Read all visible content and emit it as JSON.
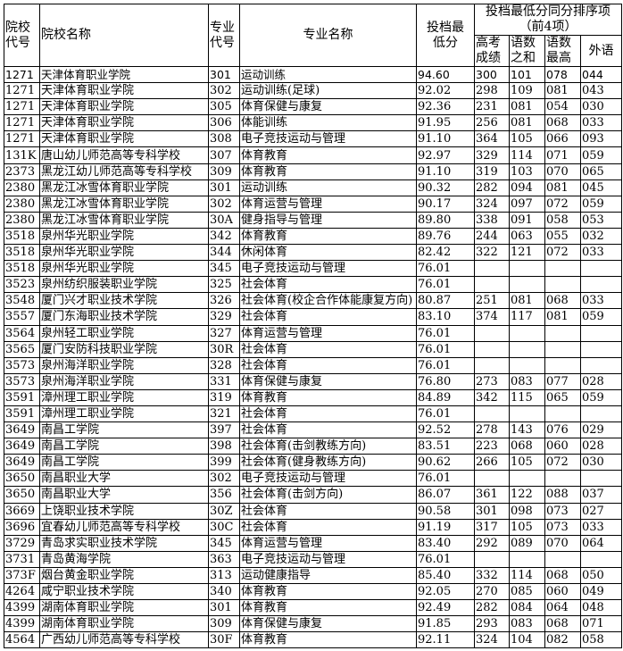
{
  "header": {
    "school_code": "院校代号",
    "school_name": "院校名称",
    "major_code": "专业代号",
    "major_name": "专业名称",
    "min_score": "投档最低分",
    "tiebreak_group": "投档最低分同分排序项（前4项）",
    "tiebreak": [
      "高考成绩",
      "语数之和",
      "语数最高",
      "外语"
    ]
  },
  "rows": [
    [
      "1271",
      "天津体育职业学院",
      "301",
      "运动训练",
      "94.60",
      "300",
      "101",
      "078",
      "044"
    ],
    [
      "1271",
      "天津体育职业学院",
      "302",
      "运动训练(足球)",
      "92.02",
      "298",
      "109",
      "081",
      "043"
    ],
    [
      "1271",
      "天津体育职业学院",
      "305",
      "体育保健与康复",
      "92.36",
      "231",
      "081",
      "054",
      "030"
    ],
    [
      "1271",
      "天津体育职业学院",
      "306",
      "体能训练",
      "91.95",
      "256",
      "081",
      "068",
      "033"
    ],
    [
      "1271",
      "天津体育职业学院",
      "308",
      "电子竞技运动与管理",
      "91.10",
      "364",
      "105",
      "066",
      "093"
    ],
    [
      "131K",
      "唐山幼儿师范高等专科学校",
      "307",
      "体育教育",
      "92.97",
      "329",
      "114",
      "071",
      "059"
    ],
    [
      "2373",
      "黑龙江幼儿师范高等专科学校",
      "309",
      "体育教育",
      "91.10",
      "319",
      "103",
      "070",
      "065"
    ],
    [
      "2380",
      "黑龙江冰雪体育职业学院",
      "301",
      "运动训练",
      "90.32",
      "282",
      "094",
      "081",
      "045"
    ],
    [
      "2380",
      "黑龙江冰雪体育职业学院",
      "302",
      "体育运营与管理",
      "90.17",
      "324",
      "097",
      "072",
      "059"
    ],
    [
      "2380",
      "黑龙江冰雪体育职业学院",
      "30A",
      "健身指导与管理",
      "89.80",
      "338",
      "091",
      "058",
      "053"
    ],
    [
      "3518",
      "泉州华光职业学院",
      "342",
      "体育教育",
      "89.76",
      "244",
      "063",
      "055",
      "032"
    ],
    [
      "3518",
      "泉州华光职业学院",
      "344",
      "休闲体育",
      "82.42",
      "322",
      "121",
      "072",
      "033"
    ],
    [
      "3518",
      "泉州华光职业学院",
      "345",
      "电子竞技运动与管理",
      "76.01",
      "",
      "",
      "",
      ""
    ],
    [
      "3523",
      "泉州纺织服装职业学院",
      "325",
      "社会体育",
      "76.01",
      "",
      "",
      "",
      ""
    ],
    [
      "3548",
      "厦门兴才职业技术学院",
      "326",
      "社会体育(校企合作体能康复方向)",
      "80.87",
      "251",
      "081",
      "068",
      "033"
    ],
    [
      "3557",
      "厦门东海职业技术学院",
      "329",
      "社会体育",
      "83.10",
      "374",
      "117",
      "081",
      "059"
    ],
    [
      "3564",
      "泉州轻工职业学院",
      "327",
      "体育运营与管理",
      "76.01",
      "",
      "",
      "",
      ""
    ],
    [
      "3565",
      "厦门安防科技职业学院",
      "30R",
      "社会体育",
      "76.01",
      "",
      "",
      "",
      ""
    ],
    [
      "3573",
      "泉州海洋职业学院",
      "328",
      "社会体育",
      "76.01",
      "",
      "",
      "",
      ""
    ],
    [
      "3573",
      "泉州海洋职业学院",
      "331",
      "体育保健与康复",
      "76.80",
      "273",
      "083",
      "077",
      "028"
    ],
    [
      "3591",
      "漳州理工职业学院",
      "319",
      "体育教育",
      "84.89",
      "342",
      "115",
      "065",
      "059"
    ],
    [
      "3591",
      "漳州理工职业学院",
      "321",
      "社会体育",
      "76.01",
      "",
      "",
      "",
      ""
    ],
    [
      "3649",
      "南昌工学院",
      "397",
      "社会体育",
      "92.52",
      "278",
      "143",
      "076",
      "029"
    ],
    [
      "3649",
      "南昌工学院",
      "398",
      "社会体育(击剑教练方向)",
      "83.51",
      "223",
      "068",
      "060",
      "028"
    ],
    [
      "3649",
      "南昌工学院",
      "399",
      "社会体育(健身教练方向)",
      "90.62",
      "266",
      "105",
      "072",
      "030"
    ],
    [
      "3650",
      "南昌职业大学",
      "302",
      "电子竞技运动与管理",
      "76.01",
      "",
      "",
      "",
      ""
    ],
    [
      "3650",
      "南昌职业大学",
      "356",
      "社会体育(击剑方向)",
      "86.07",
      "361",
      "122",
      "088",
      "037"
    ],
    [
      "3669",
      "上饶职业技术学院",
      "30Z",
      "社会体育",
      "90.58",
      "301",
      "098",
      "073",
      "027"
    ],
    [
      "3696",
      "宜春幼儿师范高等专科学校",
      "30C",
      "社会体育",
      "91.19",
      "317",
      "105",
      "073",
      "033"
    ],
    [
      "3729",
      "青岛求实职业技术学院",
      "345",
      "体育运营与管理",
      "83.40",
      "292",
      "089",
      "070",
      "064"
    ],
    [
      "3731",
      "青岛黄海学院",
      "363",
      "电子竞技运动与管理",
      "76.01",
      "",
      "",
      "",
      ""
    ],
    [
      "373F",
      "烟台黄金职业学院",
      "313",
      "运动健康指导",
      "85.40",
      "332",
      "114",
      "068",
      "050"
    ],
    [
      "4264",
      "咸宁职业技术学院",
      "340",
      "体育教育",
      "92.05",
      "270",
      "085",
      "060",
      "049"
    ],
    [
      "4399",
      "湖南体育职业学院",
      "301",
      "体育教育",
      "92.49",
      "282",
      "084",
      "064",
      "048"
    ],
    [
      "4399",
      "湖南体育职业学院",
      "309",
      "体育保健与康复",
      "91.85",
      "293",
      "083",
      "068",
      "071"
    ],
    [
      "4564",
      "广西幼儿师范高等专科学校",
      "30F",
      "体育教育",
      "92.11",
      "324",
      "104",
      "082",
      "058"
    ]
  ]
}
